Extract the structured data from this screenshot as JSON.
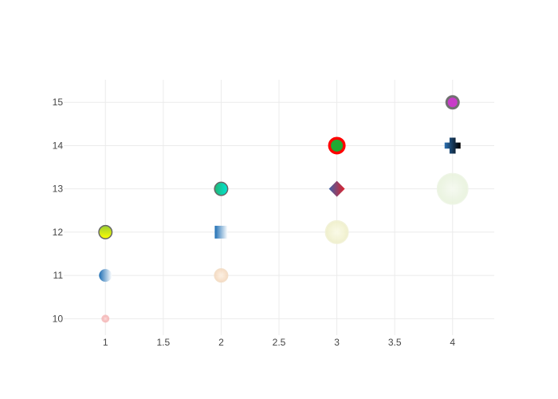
{
  "chart_data": {
    "type": "scatter",
    "title": "",
    "xlabel": "",
    "ylabel": "",
    "xlim": [
      0.64,
      4.36
    ],
    "ylim": [
      9.62,
      15.52
    ],
    "x_ticks": [
      1,
      1.5,
      2,
      2.5,
      3,
      3.5,
      4
    ],
    "y_ticks": [
      10,
      11,
      12,
      13,
      14,
      15
    ],
    "x_tick_labels": [
      "1",
      "1.5",
      "2",
      "2.5",
      "3",
      "3.5",
      "4"
    ],
    "y_tick_labels": [
      "10",
      "11",
      "12",
      "13",
      "14",
      "15"
    ],
    "grid": true,
    "legend": "none",
    "points": [
      {
        "x": 1,
        "y": 10,
        "symbol": "circle",
        "fill": "radial",
        "color_a": "#ffd6d6",
        "color_b": "#f0a0a0",
        "stroke": "#f4b4b4",
        "opacity": 0.8
      },
      {
        "x": 1,
        "y": 11,
        "symbol": "circle",
        "fill": "horizontal",
        "color_a": "#1f6fb4",
        "color_b": "#ffffff",
        "stroke": "none",
        "opacity": 1
      },
      {
        "x": 1,
        "y": 12,
        "symbol": "circle",
        "fill": "vertical",
        "color_a": "#9acd32",
        "color_b": "#ffff00",
        "stroke": "#666666",
        "opacity": 1
      },
      {
        "x": 2,
        "y": 11,
        "symbol": "circle",
        "fill": "radial",
        "color_a": "#fdf0e2",
        "color_b": "#f5d8bd",
        "stroke": "#f2dcc4",
        "opacity": 0.9
      },
      {
        "x": 2,
        "y": 12,
        "symbol": "square",
        "fill": "horizontal",
        "color_a": "#1f6fb4",
        "color_b": "#ffffff",
        "stroke": "none",
        "opacity": 1
      },
      {
        "x": 2,
        "y": 13,
        "symbol": "circle",
        "fill": "horizontal",
        "color_a": "#22b573",
        "color_b": "#00e5d4",
        "stroke": "#666666",
        "opacity": 1
      },
      {
        "x": 3,
        "y": 12,
        "symbol": "circle",
        "fill": "radial",
        "color_a": "#fbfbe6",
        "color_b": "#eeeec8",
        "stroke": "#f1f1d4",
        "opacity": 0.9
      },
      {
        "x": 3,
        "y": 13,
        "symbol": "diamond",
        "fill": "horizontal",
        "color_a": "#3f63a8",
        "color_b": "#e0202a",
        "stroke": "none",
        "opacity": 1
      },
      {
        "x": 3,
        "y": 14,
        "symbol": "circle",
        "fill": "solid",
        "color_a": "#22a832",
        "color_b": "#22a832",
        "stroke": "#ff0000",
        "opacity": 1
      },
      {
        "x": 4,
        "y": 13,
        "symbol": "circle",
        "fill": "radial",
        "color_a": "#f5faf0",
        "color_b": "#e8f2dc",
        "stroke": "#edf5e4",
        "opacity": 0.9
      },
      {
        "x": 4,
        "y": 14,
        "symbol": "cross",
        "fill": "horizontal",
        "color_a": "#2b6fb0",
        "color_b": "#000000",
        "stroke": "none",
        "opacity": 1
      },
      {
        "x": 4,
        "y": 15,
        "symbol": "circle",
        "fill": "solid",
        "color_a": "#c83cc8",
        "color_b": "#c83cc8",
        "stroke": "#707070",
        "opacity": 1
      }
    ]
  }
}
